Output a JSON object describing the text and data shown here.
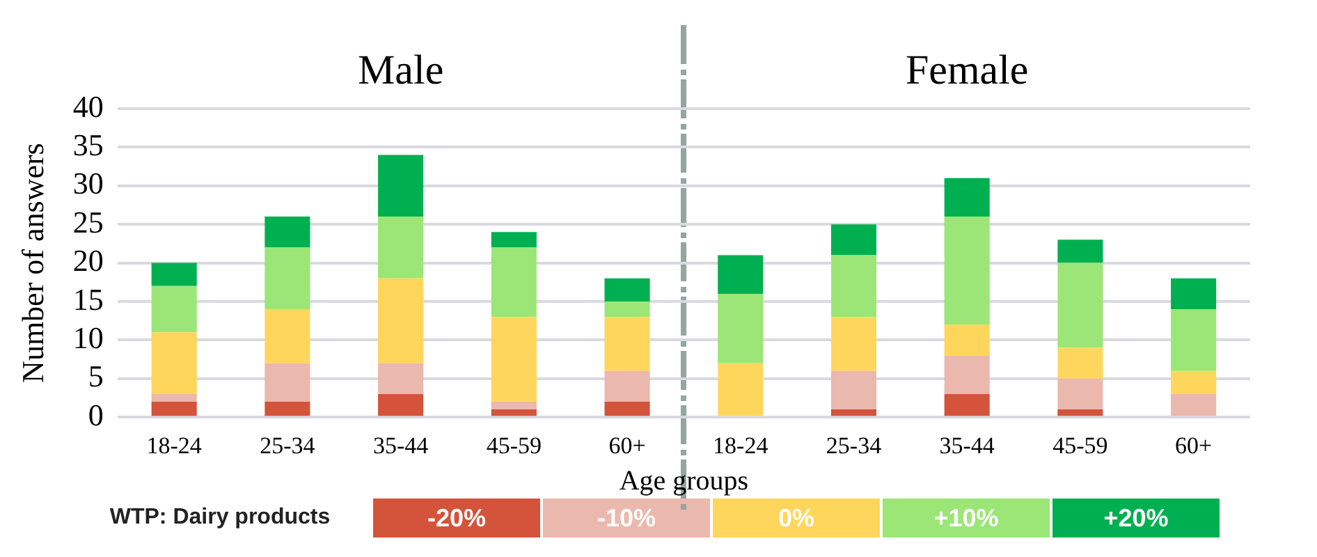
{
  "chart_data": {
    "type": "bar",
    "stacked": true,
    "xlabel": "Age groups",
    "ylabel": "Number of answers",
    "annotations": [
      "Male",
      "Female"
    ],
    "categories": [
      "18-24",
      "25-34",
      "35-44",
      "45-59",
      "60+",
      "18-24",
      "25-34",
      "35-44",
      "45-59",
      "60+"
    ],
    "series": [
      {
        "name": "-20%",
        "color": "#d4533b",
        "values": [
          2,
          2,
          3,
          1,
          2,
          0,
          1,
          3,
          1,
          0
        ]
      },
      {
        "name": "-10%",
        "color": "#ebb8ad",
        "values": [
          1,
          5,
          4,
          1,
          4,
          0,
          5,
          5,
          4,
          3
        ]
      },
      {
        "name": "0%",
        "color": "#ffd65c",
        "values": [
          8,
          7,
          11,
          11,
          7,
          7,
          7,
          4,
          4,
          3
        ]
      },
      {
        "name": "+10%",
        "color": "#9be676",
        "values": [
          6,
          8,
          8,
          9,
          2,
          9,
          8,
          14,
          11,
          8
        ]
      },
      {
        "name": "+20%",
        "color": "#00b050",
        "values": [
          3,
          4,
          8,
          2,
          3,
          5,
          4,
          5,
          3,
          4
        ]
      }
    ],
    "legend_title": "WTP: Dairy products",
    "legend": "bottom",
    "ylim": [
      0,
      40
    ],
    "yticks": [
      0,
      5,
      10,
      15,
      20,
      25,
      30,
      35,
      40
    ],
    "grid": "y"
  }
}
